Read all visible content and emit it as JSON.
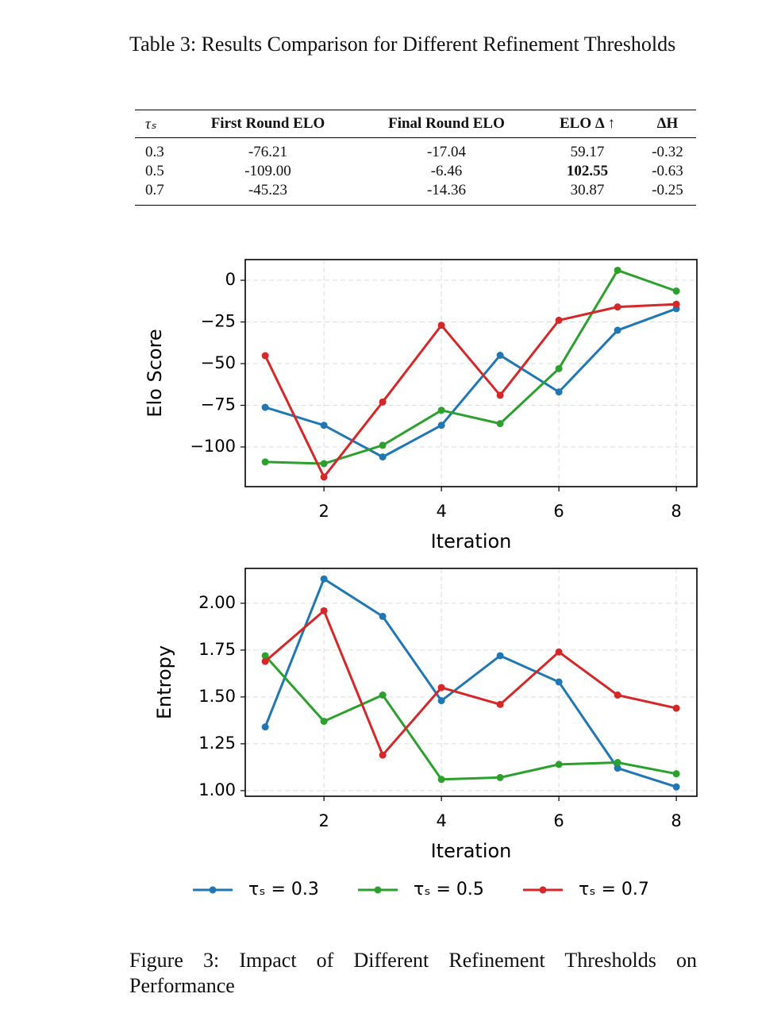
{
  "table": {
    "caption": "Table 3: Results Comparison for Different Refinement Thresholds",
    "header": [
      "τₛ",
      "First Round ELO",
      "Final Round ELO",
      "ELO Δ ↑",
      "ΔH"
    ],
    "rows": [
      [
        "0.3",
        "-76.21",
        "-17.04",
        "59.17",
        "-0.32"
      ],
      [
        "0.5",
        "-109.00",
        "-6.46",
        "102.55",
        "-0.63"
      ],
      [
        "0.7",
        "-45.23",
        "-14.36",
        "30.87",
        "-0.25"
      ]
    ]
  },
  "chart_data": [
    {
      "type": "line",
      "xlabel": "Iteration",
      "ylabel": "Elo Score",
      "x": [
        1,
        2,
        3,
        4,
        5,
        6,
        7,
        8
      ],
      "xlim": [
        0.66,
        8.35
      ],
      "xticks": [
        2,
        4,
        6,
        8
      ],
      "ylim": [
        -123.8,
        12.4
      ],
      "yticks": [
        0,
        {
          "value": -25,
          "label": "−25"
        },
        {
          "value": -50,
          "label": "−50"
        },
        {
          "value": -75,
          "label": "−75"
        },
        {
          "value": -100,
          "label": "−100"
        }
      ],
      "grid": true,
      "legend": "bottom",
      "series": [
        {
          "name": "τₛ = 0.3",
          "color": "#1f77b4",
          "values": [
            -76.21,
            -87,
            -106,
            -87,
            -45,
            -67,
            -30,
            -17.04
          ]
        },
        {
          "name": "τₛ = 0.5",
          "color": "#2ca02c",
          "values": [
            -109.0,
            -110,
            -99,
            -78,
            -86,
            -53,
            6,
            -6.46
          ]
        },
        {
          "name": "τₛ = 0.7",
          "color": "#d62728",
          "values": [
            -45.23,
            -118,
            -73,
            -27,
            -69,
            -24,
            -16,
            -14.36
          ]
        }
      ]
    },
    {
      "type": "line",
      "xlabel": "Iteration",
      "ylabel": "Entropy",
      "x": [
        1,
        2,
        3,
        4,
        5,
        6,
        7,
        8
      ],
      "xlim": [
        0.66,
        8.35
      ],
      "xticks": [
        2,
        4,
        6,
        8
      ],
      "ylim": [
        0.97,
        2.186
      ],
      "yticks": [
        {
          "value": 1,
          "label": "1.00"
        },
        {
          "value": 1.25,
          "label": "1.25"
        },
        {
          "value": 1.5,
          "label": "1.50"
        },
        {
          "value": 1.75,
          "label": "1.75"
        },
        {
          "value": 2,
          "label": "2.00"
        }
      ],
      "grid": true,
      "series": [
        {
          "color": "#1f77b4",
          "values": [
            1.34,
            2.13,
            1.93,
            1.48,
            1.72,
            1.58,
            1.12,
            1.02
          ]
        },
        {
          "color": "#2ca02c",
          "values": [
            1.72,
            1.37,
            1.51,
            1.06,
            1.07,
            1.14,
            1.15,
            1.09
          ]
        },
        {
          "color": "#d62728",
          "values": [
            1.69,
            1.96,
            1.19,
            1.55,
            1.46,
            1.74,
            1.51,
            1.44
          ]
        }
      ]
    }
  ],
  "figure_caption": "Figure 3: Impact of Different Refinement Thresholds on Performance"
}
